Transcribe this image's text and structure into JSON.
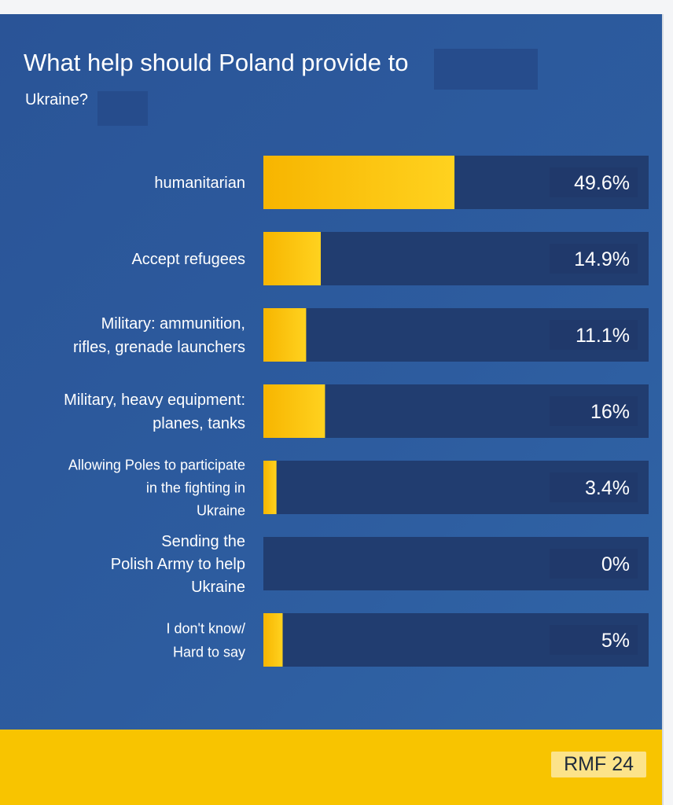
{
  "title_line1": "What help should Poland provide to",
  "title_line2": "Ukraine?",
  "brand": "RMF 24",
  "colors": {
    "background": "#2d5c9f",
    "track": "#213d70",
    "bar_start": "#f7b500",
    "bar_end": "#ffd21f",
    "footer": "#f8c400"
  },
  "chart_data": {
    "type": "bar",
    "orientation": "horizontal",
    "title": "What help should Poland provide to Ukraine?",
    "xlim": [
      0,
      100
    ],
    "grid": false,
    "legend": "none",
    "categories": [
      "humanitarian",
      "Accept refugees",
      "Military: ammunition, rifles, grenade launchers",
      "Military, heavy equipment: planes, tanks",
      "Allowing Poles to participate in the fighting in Ukraine",
      "Sending the Polish Army to help Ukraine",
      "I don't know/ Hard to say"
    ],
    "label_lines": [
      [
        "humanitarian"
      ],
      [
        "Accept refugees"
      ],
      [
        "Military: ammunition,",
        "rifles, grenade launchers"
      ],
      [
        "Military, heavy equipment:",
        "planes, tanks"
      ],
      [
        "Allowing Poles to participate",
        "in the fighting in",
        "Ukraine"
      ],
      [
        "Sending the",
        "Polish Army to help",
        "Ukraine"
      ],
      [
        "I don't know/",
        "Hard to say"
      ]
    ],
    "values": [
      49.6,
      14.9,
      11.1,
      16,
      3.4,
      0,
      5
    ],
    "value_labels": [
      "49.6%",
      "14.9%",
      "11.1%",
      "16%",
      "3.4%",
      "0%",
      "5%"
    ]
  }
}
